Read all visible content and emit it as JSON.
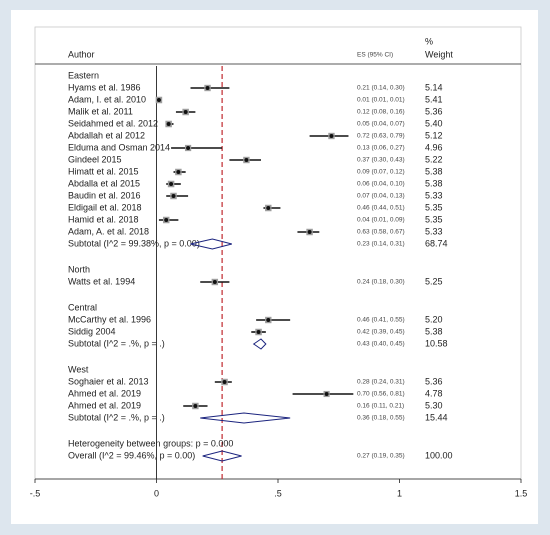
{
  "chart_data": {
    "type": "forest",
    "header": {
      "author": "Author",
      "es": "ES (95% CI)",
      "pct": "%",
      "weight": "Weight"
    },
    "xlim": [
      -0.5,
      1.5
    ],
    "xticks": [
      {
        "value": -0.5,
        "label": "-.5"
      },
      0,
      {
        "value": 0.5,
        "label": ".5"
      },
      1,
      1.5
    ],
    "ref_color": "#c0282d",
    "diamond_color": "#1a237e",
    "box_color": "#9e9e9e",
    "rows": [
      {
        "kind": "group",
        "label": "Eastern"
      },
      {
        "kind": "study",
        "label": "Hyams et al. 1986",
        "es": 0.21,
        "lo": 0.14,
        "hi": 0.3,
        "es_label": "0.21 (0.14, 0.30)",
        "weight": 5.14,
        "weight_label": "5.14"
      },
      {
        "kind": "study",
        "label": "Adam, I. et al. 2010",
        "es": 0.01,
        "lo": 0.01,
        "hi": 0.01,
        "es_label": "0.01 (0.01, 0.01)",
        "weight": 5.41,
        "weight_label": "5.41"
      },
      {
        "kind": "study",
        "label": "Malik et al. 2011",
        "es": 0.12,
        "lo": 0.08,
        "hi": 0.16,
        "es_label": "0.12 (0.08, 0.16)",
        "weight": 5.36,
        "weight_label": "5.36"
      },
      {
        "kind": "study",
        "label": "Seidahmed et al. 2012",
        "es": 0.05,
        "lo": 0.04,
        "hi": 0.07,
        "es_label": "0.05 (0.04, 0.07)",
        "weight": 5.4,
        "weight_label": "5.40"
      },
      {
        "kind": "study",
        "label": "Abdallah et al 2012",
        "es": 0.72,
        "lo": 0.63,
        "hi": 0.79,
        "es_label": "0.72 (0.63, 0.79)",
        "weight": 5.12,
        "weight_label": "5.12"
      },
      {
        "kind": "study",
        "label": "Elduma and Osman 2014",
        "es": 0.13,
        "lo": 0.06,
        "hi": 0.27,
        "es_label": "0.13 (0.06, 0.27)",
        "weight": 4.96,
        "weight_label": "4.96"
      },
      {
        "kind": "study",
        "label": "Gindeel 2015",
        "es": 0.37,
        "lo": 0.3,
        "hi": 0.43,
        "es_label": "0.37 (0.30, 0.43)",
        "weight": 5.22,
        "weight_label": "5.22"
      },
      {
        "kind": "study",
        "label": "Himatt et al. 2015",
        "es": 0.09,
        "lo": 0.07,
        "hi": 0.12,
        "es_label": "0.09 (0.07, 0.12)",
        "weight": 5.38,
        "weight_label": "5.38"
      },
      {
        "kind": "study",
        "label": "Abdalla et al 2015",
        "es": 0.06,
        "lo": 0.04,
        "hi": 0.1,
        "es_label": "0.06 (0.04, 0.10)",
        "weight": 5.38,
        "weight_label": "5.38"
      },
      {
        "kind": "study",
        "label": "Baudin et al. 2016",
        "es": 0.07,
        "lo": 0.04,
        "hi": 0.13,
        "es_label": "0.07 (0.04, 0.13)",
        "weight": 5.33,
        "weight_label": "5.33"
      },
      {
        "kind": "study",
        "label": "Eldigail et al. 2018",
        "es": 0.46,
        "lo": 0.44,
        "hi": 0.51,
        "es_label": "0.46 (0.44, 0.51)",
        "weight": 5.35,
        "weight_label": "5.35"
      },
      {
        "kind": "study",
        "label": "Hamid et al. 2018",
        "es": 0.04,
        "lo": 0.01,
        "hi": 0.09,
        "es_label": "0.04 (0.01, 0.09)",
        "weight": 5.35,
        "weight_label": "5.35"
      },
      {
        "kind": "study",
        "label": "Adam, A. et al. 2018",
        "es": 0.63,
        "lo": 0.58,
        "hi": 0.67,
        "es_label": "0.63 (0.58, 0.67)",
        "weight": 5.33,
        "weight_label": "5.33"
      },
      {
        "kind": "subtotal",
        "label": "Subtotal  (I^2 = 99.38%, p = 0.00)",
        "es": 0.23,
        "lo": 0.14,
        "hi": 0.31,
        "es_label": "0.23 (0.14, 0.31)",
        "weight": 68.74,
        "weight_label": "68.74"
      },
      {
        "kind": "group",
        "label": "North"
      },
      {
        "kind": "study",
        "label": "Watts et al. 1994",
        "es": 0.24,
        "lo": 0.18,
        "hi": 0.3,
        "es_label": "0.24 (0.18, 0.30)",
        "weight": 5.25,
        "weight_label": "5.25"
      },
      {
        "kind": "group",
        "label": "Central"
      },
      {
        "kind": "study",
        "label": "McCarthy et al. 1996",
        "es": 0.46,
        "lo": 0.41,
        "hi": 0.55,
        "es_label": "0.46 (0.41, 0.55)",
        "weight": 5.2,
        "weight_label": "5.20"
      },
      {
        "kind": "study",
        "label": "Siddig 2004",
        "es": 0.42,
        "lo": 0.39,
        "hi": 0.45,
        "es_label": "0.42 (0.39, 0.45)",
        "weight": 5.38,
        "weight_label": "5.38"
      },
      {
        "kind": "subtotal",
        "label": "Subtotal  (I^2 = .%, p = .)",
        "es": 0.43,
        "lo": 0.4,
        "hi": 0.45,
        "es_label": "0.43 (0.40, 0.45)",
        "weight": 10.58,
        "weight_label": "10.58"
      },
      {
        "kind": "group",
        "label": "West"
      },
      {
        "kind": "study",
        "label": "Soghaier et al. 2013",
        "es": 0.28,
        "lo": 0.24,
        "hi": 0.31,
        "es_label": "0.28 (0.24, 0.31)",
        "weight": 5.36,
        "weight_label": "5.36"
      },
      {
        "kind": "study",
        "label": "Ahmed et al. 2019",
        "es": 0.7,
        "lo": 0.56,
        "hi": 0.81,
        "es_label": "0.70 (0.56, 0.81)",
        "weight": 4.78,
        "weight_label": "4.78"
      },
      {
        "kind": "study",
        "label": "Ahmed et al. 2019",
        "es": 0.16,
        "lo": 0.11,
        "hi": 0.21,
        "es_label": "0.16 (0.11, 0.21)",
        "weight": 5.3,
        "weight_label": "5.30"
      },
      {
        "kind": "subtotal",
        "label": "Subtotal  (I^2 = .%, p = .)",
        "es": 0.36,
        "lo": 0.18,
        "hi": 0.55,
        "es_label": "0.36 (0.18, 0.55)",
        "weight": 15.44,
        "weight_label": "15.44"
      },
      {
        "kind": "het",
        "label": "Heterogeneity between groups: p = 0.000"
      },
      {
        "kind": "overall",
        "label": "Overall  (I^2 = 99.46%, p = 0.00)",
        "es": 0.27,
        "lo": 0.19,
        "hi": 0.35,
        "es_label": "0.27 (0.19, 0.35)",
        "weight": 100,
        "weight_label": "100.00"
      }
    ]
  }
}
